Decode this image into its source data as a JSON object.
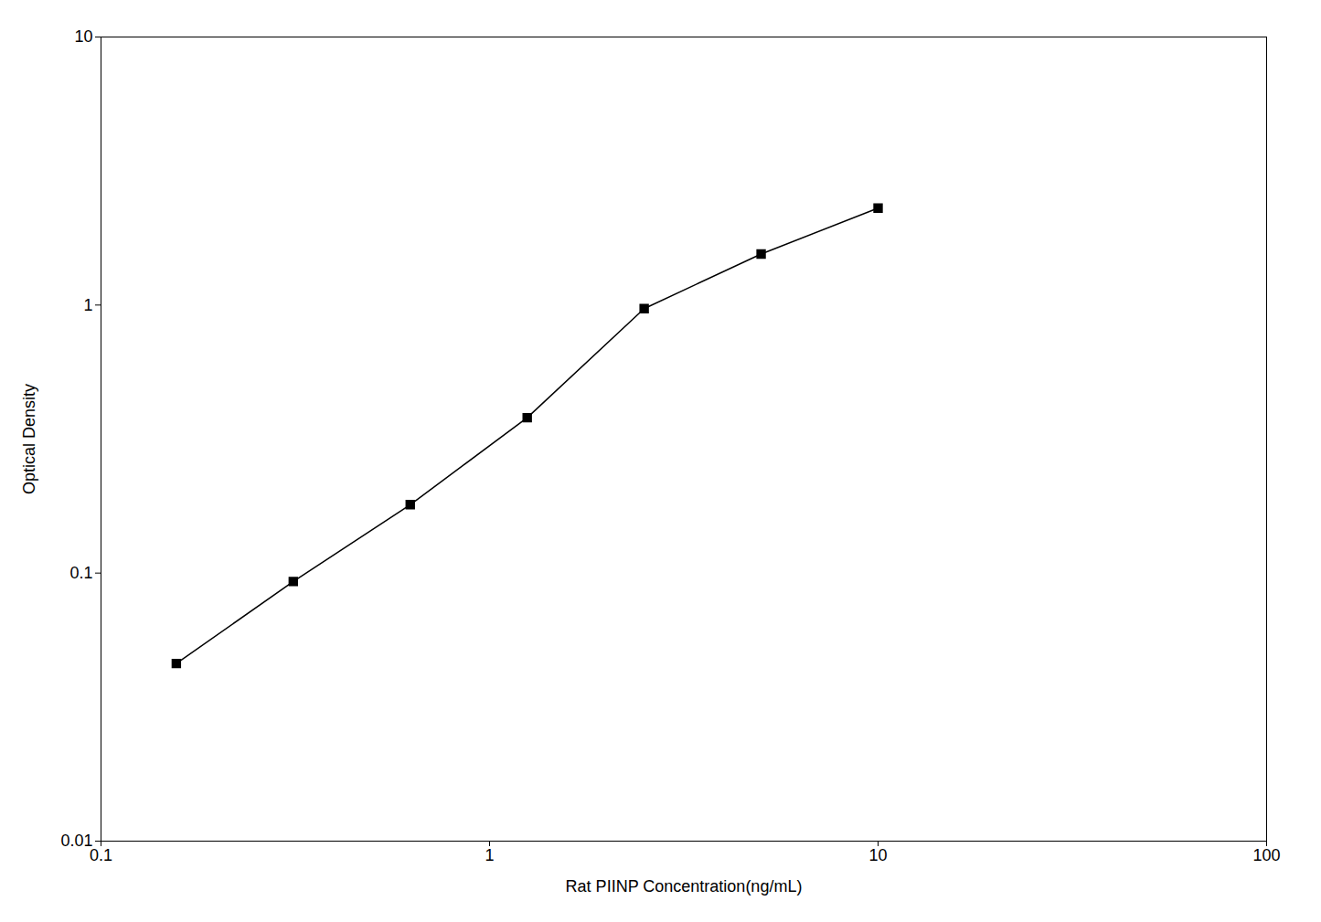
{
  "chart_data": {
    "type": "line",
    "x": [
      0.15625,
      0.3125,
      0.625,
      1.25,
      2.5,
      5.0,
      10.0
    ],
    "values": [
      0.046,
      0.093,
      0.18,
      0.38,
      0.97,
      1.55,
      2.3
    ],
    "xlabel": "Rat PIINP Concentration(ng/mL)",
    "ylabel": "Optical Density",
    "log": true,
    "xlim": [
      0.1,
      100
    ],
    "ylim": [
      0.01,
      10
    ],
    "xticks": [
      0.1,
      1,
      10,
      100
    ],
    "yticks": [
      0.01,
      0.1,
      1,
      10
    ],
    "color": "#000000",
    "marker": "square",
    "grid": false
  }
}
